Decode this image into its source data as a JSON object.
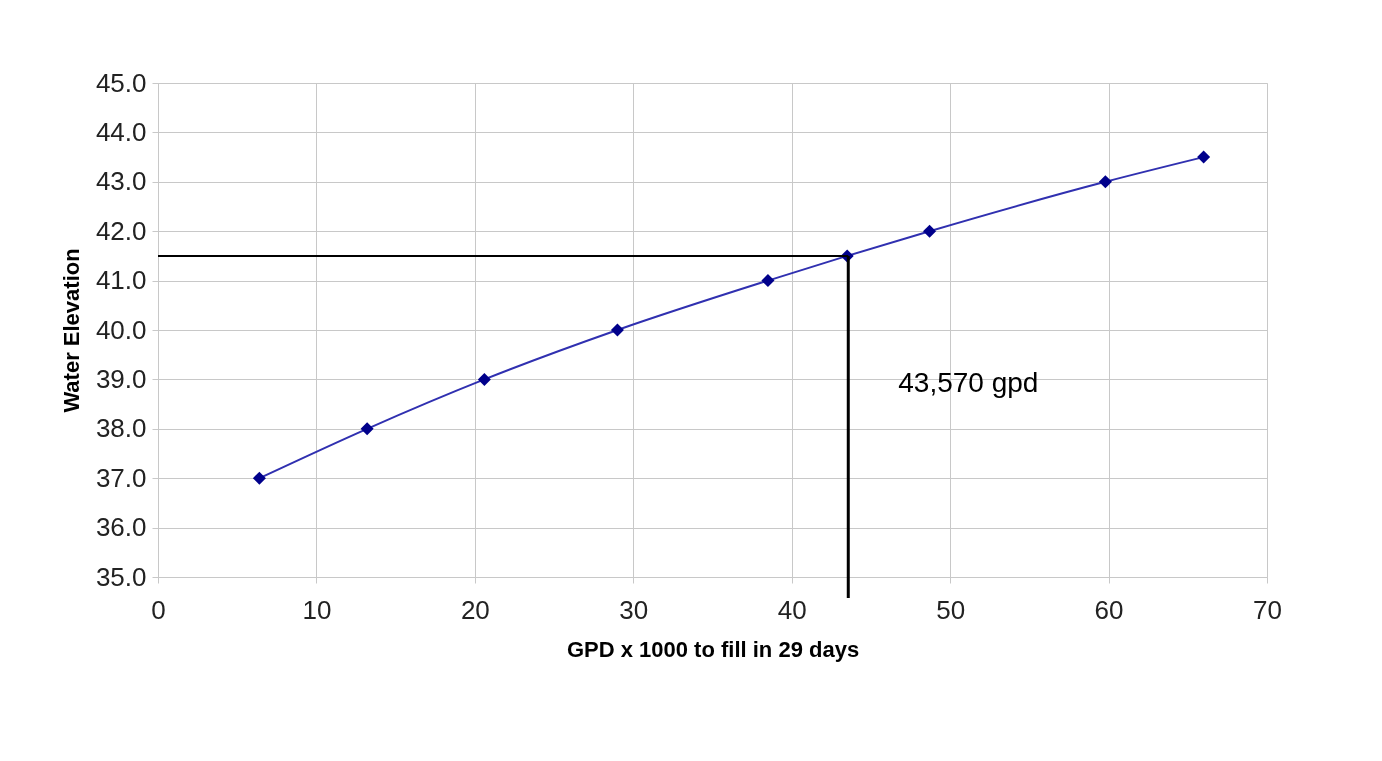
{
  "chart_data": {
    "type": "line",
    "xlabel": "GPD x 1000 to fill in 29 days",
    "ylabel": "Water Elevation",
    "x": [
      6.4,
      13.2,
      20.6,
      29.0,
      38.5,
      43.5,
      48.7,
      59.8,
      66.0
    ],
    "series": [
      {
        "color": "#00008b",
        "values": [
          37.0,
          38.0,
          39.0,
          40.0,
          41.0,
          41.5,
          42.0,
          43.0,
          43.5
        ]
      }
    ],
    "xlim": [
      0,
      70
    ],
    "xticks": [
      0,
      10,
      20,
      30,
      40,
      50,
      60,
      70
    ],
    "ylim": [
      35,
      45
    ],
    "yticks": [
      {
        "value": 35,
        "label": "35.0"
      },
      {
        "value": 36,
        "label": "36.0"
      },
      {
        "value": 37,
        "label": "37.0"
      },
      {
        "value": 38,
        "label": "38.0"
      },
      {
        "value": 39,
        "label": "39.0"
      },
      {
        "value": 40,
        "label": "40.0"
      },
      {
        "value": 41,
        "label": "41.0"
      },
      {
        "value": 42,
        "label": "42.0"
      },
      {
        "value": 43,
        "label": "43.0"
      },
      {
        "value": 44,
        "label": "44.0"
      },
      {
        "value": 45,
        "label": "45.0"
      }
    ],
    "ref_lines": [
      {
        "axis": "x",
        "value": 43.57,
        "label": "43,570 gpd",
        "color": "#000000"
      },
      {
        "axis": "y",
        "value": 41.5,
        "color": "#000000"
      }
    ],
    "grid": true,
    "marker": "diamond"
  }
}
